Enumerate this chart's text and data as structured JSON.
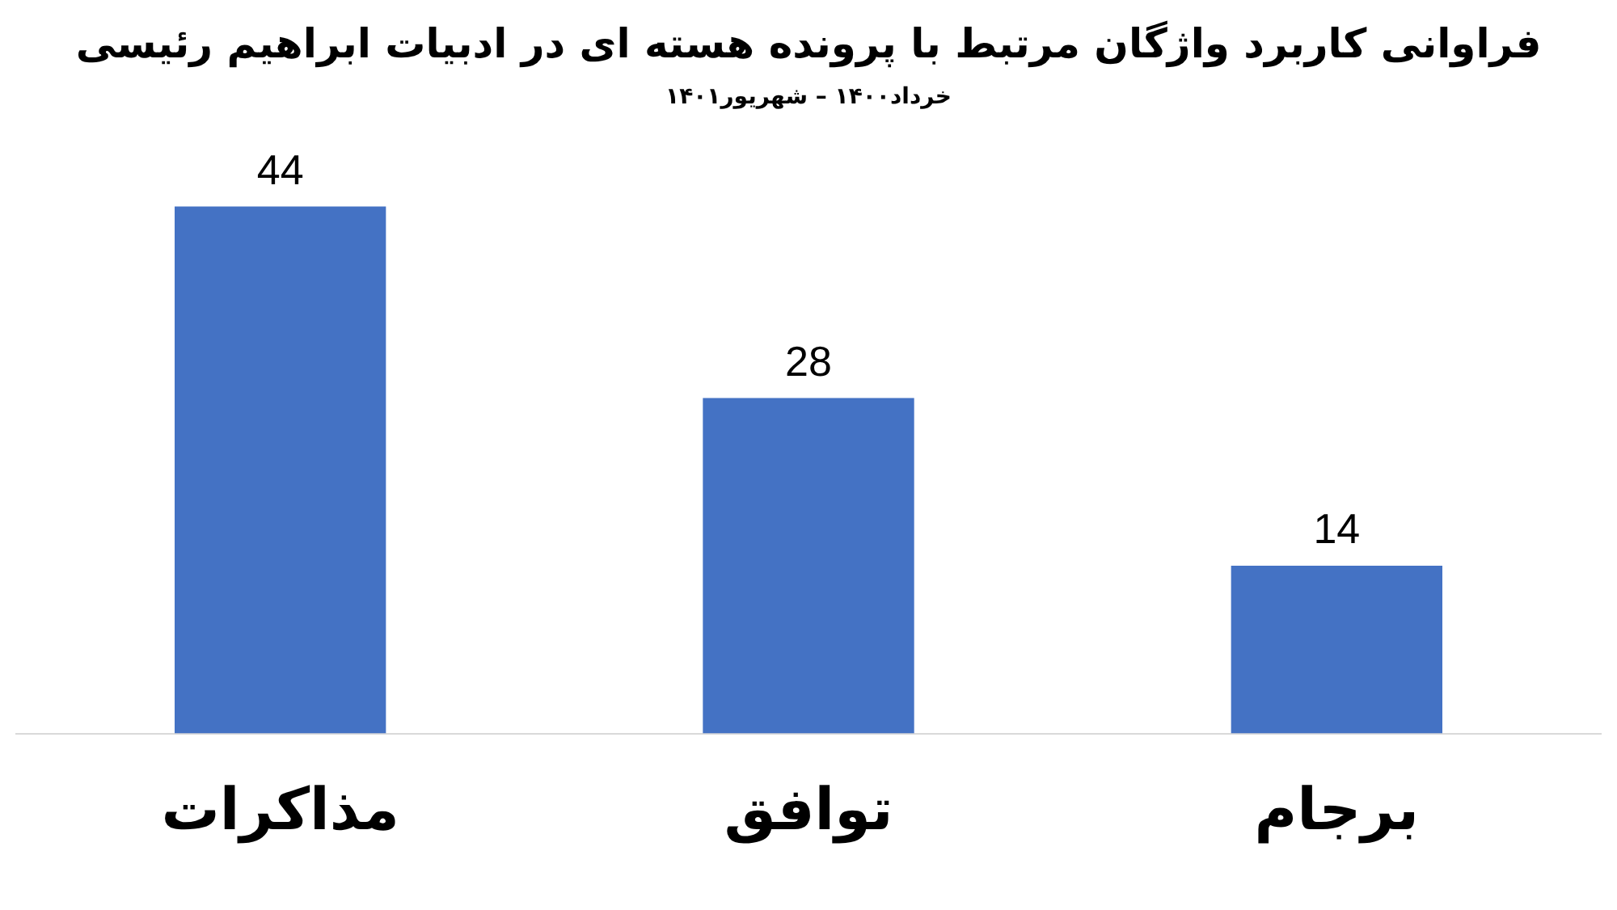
{
  "chart_data": {
    "type": "bar",
    "title": "فراوانی کاربرد واژگان مرتبط با پرونده هسته ای در ادبیات ابراهیم رئیسی",
    "subtitle": "خرداد۱۴۰۰ – شهریور۱۴۰۱",
    "categories": [
      "مذاکرات",
      "توافق",
      "برجام"
    ],
    "values": [
      44,
      28,
      14
    ],
    "color": "#4472c4",
    "data_labels": true,
    "grid": false,
    "legend": false
  }
}
